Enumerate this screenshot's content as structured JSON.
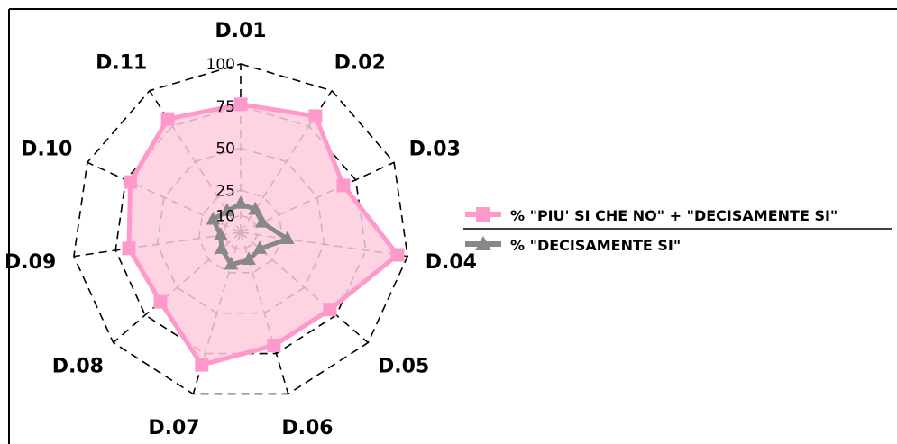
{
  "chart_data": {
    "type": "radar",
    "categories": [
      "D.01",
      "D.02",
      "D.03",
      "D.04",
      "D.05",
      "D.06",
      "D.07",
      "D.08",
      "D.09",
      "D.10",
      "D.11"
    ],
    "rlim": [
      0,
      100
    ],
    "ticks": [
      10,
      25,
      50,
      75,
      100
    ],
    "tick_labels": [
      "10",
      "25",
      "50",
      "75",
      "100"
    ],
    "grid": true,
    "legend_position": "right",
    "series": [
      {
        "name": "% \"PIU' SI CHE NO\" + \"DECISAMENTE SI\"",
        "values": [
          76,
          82,
          67,
          94,
          70,
          70,
          82,
          63,
          67,
          72,
          80
        ],
        "color": "#ff99cc",
        "fill": "#ffccdd",
        "marker": "square"
      },
      {
        "name": "% \"DECISAMENTE SI\"",
        "values": [
          17,
          16,
          14,
          28,
          15,
          17,
          20,
          15,
          12,
          18,
          15
        ],
        "color": "#888888",
        "marker": "triangle"
      }
    ]
  }
}
